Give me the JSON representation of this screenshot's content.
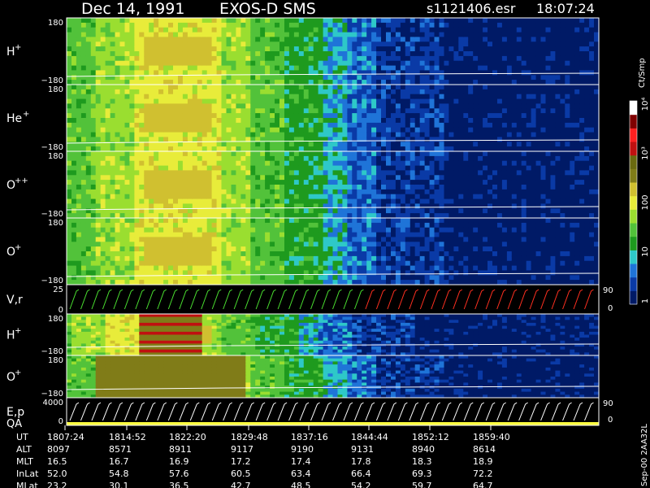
{
  "header": {
    "date": "Dec 14, 1991",
    "instrument": "EXOS-D SMS",
    "file": "s1121406.esr",
    "time": "18:07:24"
  },
  "footer_note": "Sep-00  2AA32L",
  "colors": {
    "background": "#000000",
    "text": "#ffffff",
    "panel_border": "#ffffff",
    "trace": "#ffffff",
    "velocity_marks_green": "#4ade30",
    "velocity_marks_red": "#ff3020",
    "qa_bar": "#ffff40"
  },
  "chart_data": {
    "type": "heatmap",
    "colorbar": {
      "label": "Ct/Smp",
      "scale": "log",
      "range": [
        1,
        10000
      ],
      "ticks": [
        "1",
        "10",
        "100",
        "10³",
        "10⁴"
      ],
      "palette": [
        "#001a66",
        "#0a3aa6",
        "#1f74d8",
        "#2ec8c8",
        "#1e9a1e",
        "#52c23a",
        "#9ade30",
        "#e8ec3a",
        "#d0c030",
        "#807c18",
        "#6a6a10",
        "#c01010",
        "#ff2020",
        "#800000",
        "#ffffff"
      ]
    },
    "panels": [
      {
        "label": "H",
        "charge": "+",
        "ymax": "180",
        "ymin": "−180"
      },
      {
        "label": "He",
        "charge": "+",
        "ymax": "180",
        "ymin": "−180"
      },
      {
        "label": "O",
        "charge": "++",
        "ymax": "180",
        "ymin": "−180"
      },
      {
        "label": "O",
        "charge": "+",
        "ymax": "180",
        "ymin": "−180"
      },
      {
        "label": "V,r",
        "charge": "",
        "ymax": "25",
        "ymin": "0",
        "right_top": "90",
        "right_bottom": "0"
      },
      {
        "label": "H",
        "charge": "+",
        "ymax": "180",
        "ymin": "−180"
      },
      {
        "label": "O",
        "charge": "+",
        "ymax": "180",
        "ymin": "−180"
      },
      {
        "label": "E,p",
        "label2": "QA",
        "charge": "",
        "ymax": "4000",
        "ymin": "0",
        "right_top": "90",
        "right_bottom": "0"
      }
    ],
    "ephemeris": {
      "rows": [
        "UT",
        "ALT",
        "MLT",
        "InLat",
        "MLat"
      ],
      "columns": [
        {
          "UT": "1807:24",
          "ALT": "8097",
          "MLT": "16.5",
          "InLat": "52.0",
          "MLat": "23.2"
        },
        {
          "UT": "1814:52",
          "ALT": "8571",
          "MLT": "16.7",
          "InLat": "54.8",
          "MLat": "30.1"
        },
        {
          "UT": "1822:20",
          "ALT": "8911",
          "MLT": "16.9",
          "InLat": "57.6",
          "MLat": "36.5"
        },
        {
          "UT": "1829:48",
          "ALT": "9117",
          "MLT": "17.2",
          "InLat": "60.5",
          "MLat": "42.7"
        },
        {
          "UT": "1837:16",
          "ALT": "9190",
          "MLT": "17.4",
          "InLat": "63.4",
          "MLat": "48.5"
        },
        {
          "UT": "1844:44",
          "ALT": "9131",
          "MLT": "17.8",
          "InLat": "66.4",
          "MLat": "54.2"
        },
        {
          "UT": "1852:12",
          "ALT": "8940",
          "MLT": "18.3",
          "InLat": "69.3",
          "MLat": "59.7"
        },
        {
          "UT": "1859:40",
          "ALT": "8614",
          "MLT": "18.9",
          "InLat": "72.2",
          "MLat": "64.7"
        }
      ]
    }
  }
}
